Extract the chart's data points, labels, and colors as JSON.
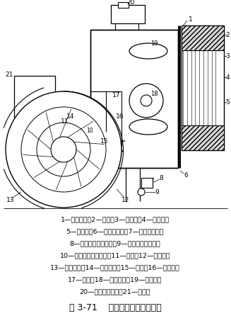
{
  "title": "图 3-71    主燃烧器的结构示意图",
  "legend_lines": [
    "1—燃烧器头；2—砖衬；3—燃气孔；4—阻焰孔；",
    "5—阻焰环；6—安装用法兰；7—燃烧器风道；",
    "8—点火用空气引出口；9—风压开关引出口；",
    "10—风门开启度指示板；11—风机；12—电动机；",
    "13—风机本体；14—风压开关；15—风门；16—风门轴；",
    "17—燃气；18—旋转叶片；19—燃气管；",
    "20—点火用变压器；21—接线匣"
  ],
  "bg_color": "#ffffff",
  "line_color": "#000000",
  "text_color": "#000000",
  "fig_w": 327,
  "fig_h": 464
}
